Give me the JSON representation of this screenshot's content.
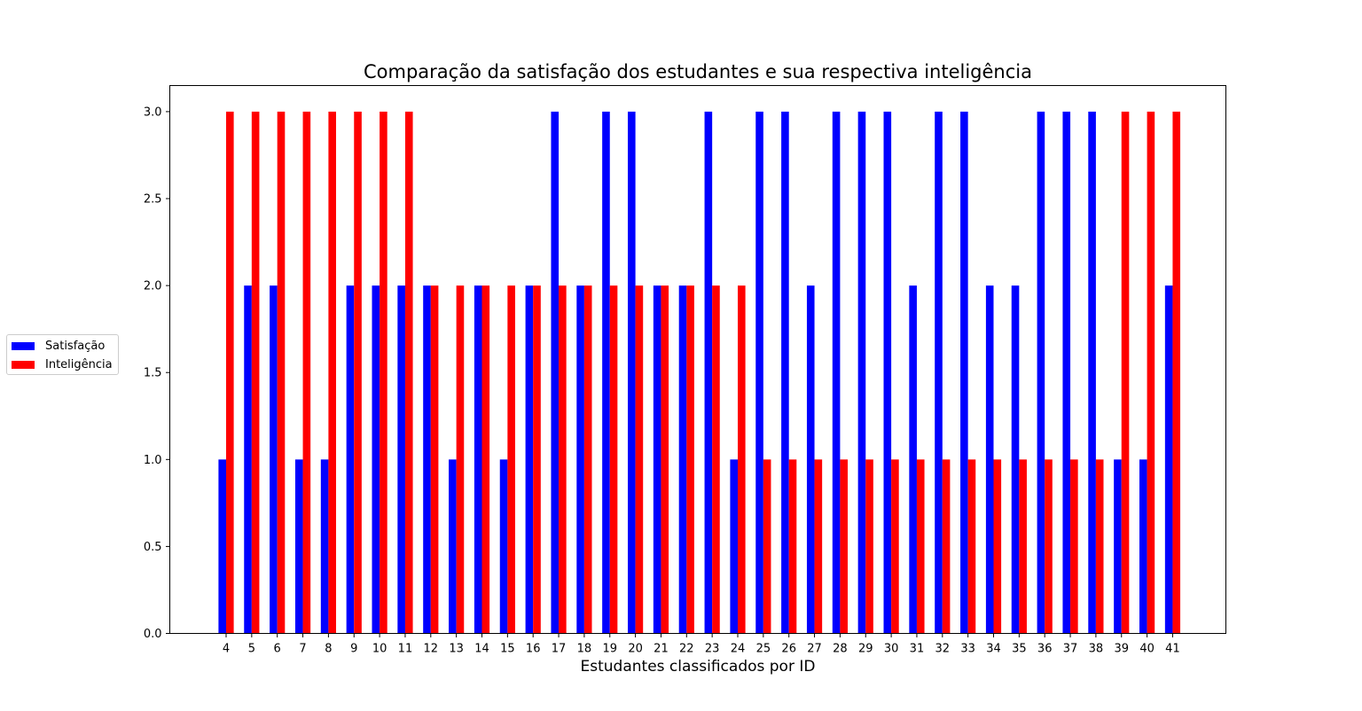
{
  "chart_data": {
    "type": "bar",
    "title": "Comparação da satisfação dos estudantes e sua respectiva inteligência",
    "xlabel": "Estudantes classificados por ID",
    "ylabel": "",
    "ylim": [
      0,
      3.15
    ],
    "yticks": [
      "0.0",
      "0.5",
      "1.0",
      "1.5",
      "2.0",
      "2.5",
      "3.0"
    ],
    "categories": [
      "4",
      "5",
      "6",
      "7",
      "8",
      "9",
      "10",
      "11",
      "12",
      "13",
      "14",
      "15",
      "16",
      "17",
      "18",
      "19",
      "20",
      "21",
      "22",
      "23",
      "24",
      "25",
      "26",
      "27",
      "28",
      "29",
      "30",
      "31",
      "32",
      "33",
      "34",
      "35",
      "36",
      "37",
      "38",
      "39",
      "40",
      "41"
    ],
    "series": [
      {
        "name": "Satisfação",
        "color": "#0000ff",
        "values": [
          1,
          2,
          2,
          1,
          1,
          2,
          2,
          2,
          2,
          1,
          2,
          1,
          2,
          3,
          2,
          3,
          3,
          2,
          2,
          3,
          1,
          3,
          3,
          2,
          3,
          3,
          3,
          2,
          3,
          3,
          2,
          2,
          3,
          3,
          3,
          1,
          1,
          2
        ]
      },
      {
        "name": "Inteligência",
        "color": "#ff0000",
        "values": [
          3,
          3,
          3,
          3,
          3,
          3,
          3,
          3,
          2,
          2,
          2,
          2,
          2,
          2,
          2,
          2,
          2,
          2,
          2,
          2,
          2,
          1,
          1,
          1,
          1,
          1,
          1,
          1,
          1,
          1,
          1,
          1,
          1,
          1,
          1,
          3,
          3,
          3
        ]
      }
    ],
    "legend_position": "center-left outside",
    "grid": false
  }
}
